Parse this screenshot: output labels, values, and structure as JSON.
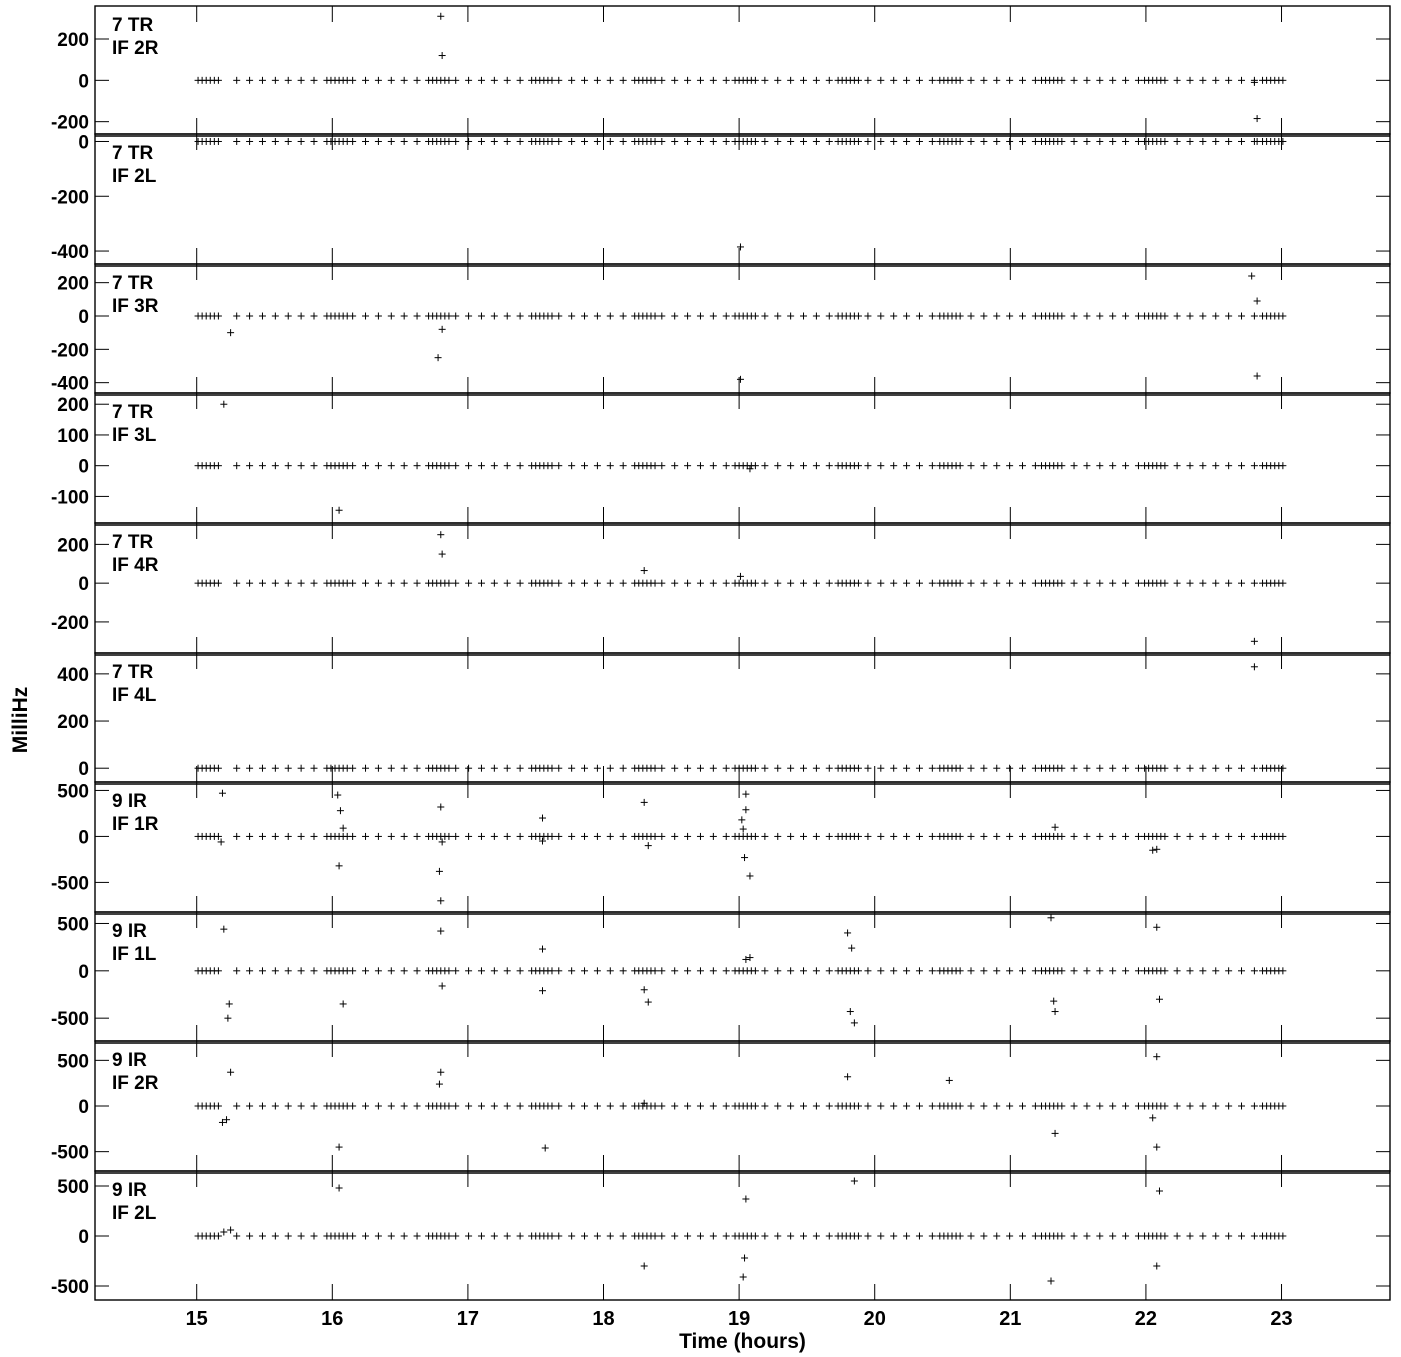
{
  "chart_data": {
    "type": "scatter",
    "xlabel": "Time (hours)",
    "ylabel": "MilliHz",
    "xlim": [
      14.25,
      23.8
    ],
    "xticks": [
      15,
      16,
      17,
      18,
      19,
      20,
      21,
      22,
      23
    ],
    "marker": "plus",
    "panels": [
      {
        "label_line1": "7 TR",
        "label_line2": "IF 2R",
        "ylim": [
          -250,
          350
        ],
        "yticks": [
          200,
          0,
          -200
        ],
        "outliers": [
          [
            16.8,
            310
          ],
          [
            16.81,
            120
          ],
          [
            22.82,
            -185
          ],
          [
            22.8,
            -10
          ]
        ]
      },
      {
        "label_line1": "7 TR",
        "label_line2": "IF 2L",
        "ylim": [
          -440,
          20
        ],
        "yticks": [
          0,
          -200,
          -400
        ],
        "outliers": [
          [
            19.01,
            -385
          ],
          [
            22.82,
            0
          ]
        ]
      },
      {
        "label_line1": "7 TR",
        "label_line2": "IF 3R",
        "ylim": [
          -450,
          300
        ],
        "yticks": [
          200,
          0,
          -200,
          -400
        ],
        "outliers": [
          [
            15.25,
            -100
          ],
          [
            16.78,
            -250
          ],
          [
            16.81,
            -80
          ],
          [
            19.01,
            -380
          ],
          [
            22.78,
            240
          ],
          [
            22.82,
            90
          ],
          [
            22.82,
            -360
          ]
        ]
      },
      {
        "label_line1": "7 TR",
        "label_line2": "IF 3L",
        "ylim": [
          -180,
          230
        ],
        "yticks": [
          200,
          100,
          0,
          -100
        ],
        "outliers": [
          [
            15.2,
            200
          ],
          [
            16.05,
            -145
          ],
          [
            19.08,
            -10
          ]
        ]
      },
      {
        "label_line1": "7 TR",
        "label_line2": "IF 4R",
        "ylim": [
          -350,
          300
        ],
        "yticks": [
          200,
          0,
          -200
        ],
        "outliers": [
          [
            16.8,
            250
          ],
          [
            16.81,
            150
          ],
          [
            18.3,
            65
          ],
          [
            19.01,
            35
          ],
          [
            22.8,
            -300
          ]
        ]
      },
      {
        "label_line1": "7 TR",
        "label_line2": "IF 4L",
        "ylim": [
          -50,
          480
        ],
        "yticks": [
          400,
          200,
          0
        ],
        "outliers": [
          [
            22.8,
            430
          ]
        ]
      },
      {
        "label_line1": "9 IR",
        "label_line2": "IF 1R",
        "ylim": [
          -800,
          570
        ],
        "yticks": [
          500,
          0,
          -500
        ],
        "outliers": [
          [
            15.19,
            470
          ],
          [
            15.18,
            -60
          ],
          [
            16.04,
            450
          ],
          [
            16.06,
            280
          ],
          [
            16.08,
            90
          ],
          [
            16.05,
            -320
          ],
          [
            16.8,
            320
          ],
          [
            16.81,
            -60
          ],
          [
            16.79,
            -380
          ],
          [
            16.8,
            -700
          ],
          [
            17.55,
            200
          ],
          [
            17.55,
            -50
          ],
          [
            18.3,
            370
          ],
          [
            18.33,
            -100
          ],
          [
            19.05,
            460
          ],
          [
            19.05,
            290
          ],
          [
            19.02,
            180
          ],
          [
            19.03,
            80
          ],
          [
            19.04,
            -230
          ],
          [
            19.08,
            -430
          ],
          [
            21.33,
            100
          ],
          [
            22.05,
            -150
          ],
          [
            22.08,
            -140
          ]
        ]
      },
      {
        "label_line1": "9 IR",
        "label_line2": "IF 1L",
        "ylim": [
          -720,
          600
        ],
        "yticks": [
          500,
          0,
          -500
        ],
        "outliers": [
          [
            15.2,
            440
          ],
          [
            15.24,
            -350
          ],
          [
            15.23,
            -500
          ],
          [
            16.08,
            -350
          ],
          [
            16.8,
            420
          ],
          [
            16.81,
            -160
          ],
          [
            17.55,
            230
          ],
          [
            17.55,
            -210
          ],
          [
            18.3,
            -200
          ],
          [
            18.33,
            -330
          ],
          [
            19.05,
            120
          ],
          [
            19.08,
            140
          ],
          [
            19.8,
            400
          ],
          [
            19.83,
            240
          ],
          [
            19.82,
            -430
          ],
          [
            19.85,
            -550
          ],
          [
            21.3,
            560
          ],
          [
            21.32,
            -320
          ],
          [
            21.33,
            -430
          ],
          [
            22.08,
            460
          ],
          [
            22.1,
            -300
          ]
        ]
      },
      {
        "label_line1": "9 IR",
        "label_line2": "IF 2R",
        "ylim": [
          -690,
          690
        ],
        "yticks": [
          500,
          0,
          -500
        ],
        "outliers": [
          [
            15.19,
            -180
          ],
          [
            15.22,
            -150
          ],
          [
            15.25,
            370
          ],
          [
            16.05,
            -450
          ],
          [
            16.8,
            370
          ],
          [
            16.79,
            240
          ],
          [
            17.57,
            -460
          ],
          [
            18.3,
            30
          ],
          [
            19.8,
            320
          ],
          [
            20.55,
            280
          ],
          [
            21.33,
            -300
          ],
          [
            22.05,
            -130
          ],
          [
            22.08,
            -450
          ],
          [
            22.08,
            540
          ]
        ]
      },
      {
        "label_line1": "9 IR",
        "label_line2": "IF 2L",
        "ylim": [
          -620,
          630
        ],
        "yticks": [
          500,
          0,
          -500
        ],
        "outliers": [
          [
            15.2,
            40
          ],
          [
            15.25,
            60
          ],
          [
            16.05,
            480
          ],
          [
            18.3,
            -300
          ],
          [
            19.05,
            370
          ],
          [
            19.04,
            -220
          ],
          [
            19.03,
            -410
          ],
          [
            19.85,
            550
          ],
          [
            21.3,
            -450
          ],
          [
            22.1,
            450
          ],
          [
            22.08,
            -300
          ]
        ]
      }
    ]
  }
}
